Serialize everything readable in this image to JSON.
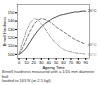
{
  "chart_data": {
    "type": "line",
    "xlabel": "Ageing Time",
    "ylabel": "Brinell Hardness",
    "caption": "Brinell hardness measured with a 1/16 mm diameter ball\nloaded to 163 N (or 2.5 kgf).",
    "x": [
      0,
      5,
      10,
      15,
      20,
      25,
      30,
      35,
      40,
      45,
      50,
      55,
      60,
      65,
      70,
      75,
      80,
      85,
      90
    ],
    "series": [
      {
        "name": "20°C",
        "color": "#222222",
        "line_style": "solid",
        "values": [
          100,
          103,
          108,
          115,
          122,
          128,
          133,
          137,
          140,
          143,
          145,
          147,
          148,
          149,
          150,
          151,
          151,
          152,
          152
        ]
      },
      {
        "name": "40°C",
        "color": "#555555",
        "line_style": "dashed",
        "values": [
          100,
          108,
          118,
          128,
          136,
          141,
          143,
          142,
          140,
          137,
          133,
          130,
          127,
          124,
          121,
          118,
          116,
          114,
          112
        ]
      },
      {
        "name": "70°C",
        "color": "#888888",
        "line_style": "dashdot",
        "values": [
          100,
          115,
          128,
          138,
          143,
          142,
          137,
          131,
          124,
          118,
          113,
          109,
          106,
          104,
          103,
          102,
          101,
          101,
          100
        ]
      }
    ],
    "xlim": [
      -2,
      95
    ],
    "ylim": [
      95,
      160
    ],
    "xticks": [
      0,
      10,
      20,
      30,
      40,
      50,
      60,
      70,
      80,
      90
    ],
    "yticks": [
      100,
      110,
      120,
      130,
      140,
      150
    ],
    "grid": false
  }
}
